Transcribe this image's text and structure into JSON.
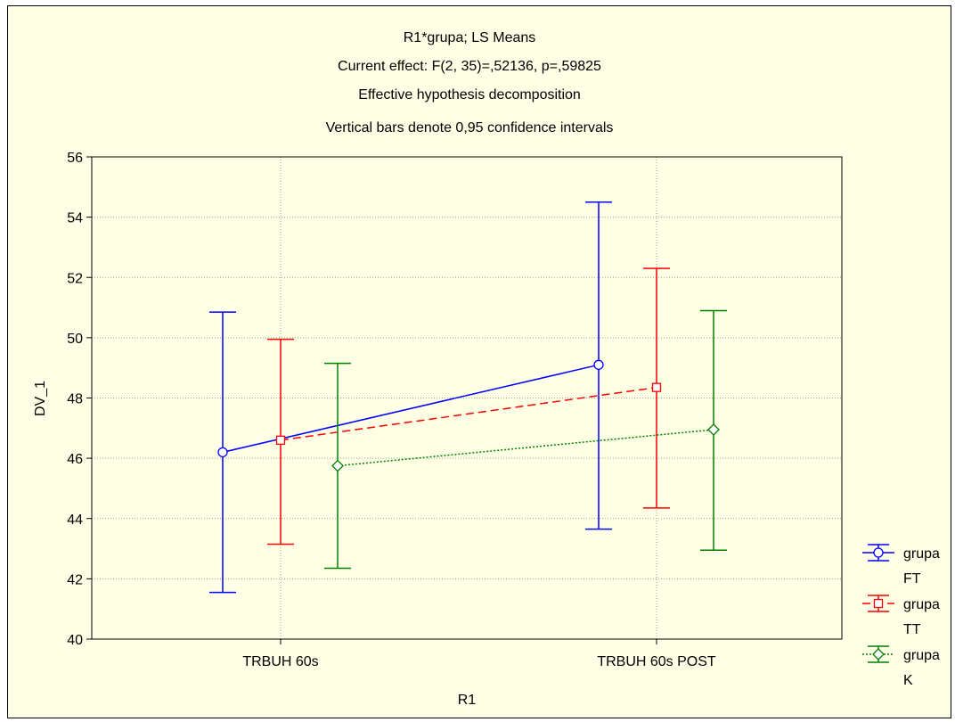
{
  "chart_data": {
    "type": "line",
    "title_lines": [
      "R1*grupa; LS Means",
      "Current effect: F(2, 35)=,52136, p=,59825",
      "Effective hypothesis decomposition",
      "Vertical bars denote 0,95 confidence intervals"
    ],
    "xlabel": "R1",
    "ylabel": "DV_1",
    "categories": [
      "TRBUH 60s",
      "TRBUH 60s POST"
    ],
    "ylim": [
      40,
      56
    ],
    "yticks": [
      "40",
      "42",
      "44",
      "46",
      "48",
      "50",
      "52",
      "54",
      "56"
    ],
    "grid": true,
    "legend_position": "right",
    "series": [
      {
        "legend_lines": [
          "grupa",
          "FT"
        ],
        "color": "#0000ff",
        "marker": "circle",
        "line_style": "solid",
        "values": [
          46.2,
          49.1
        ],
        "ci_low": [
          41.55,
          43.65
        ],
        "ci_high": [
          50.85,
          54.5
        ]
      },
      {
        "legend_lines": [
          "grupa",
          "TT"
        ],
        "color": "#ff0000",
        "marker": "square",
        "line_style": "dashed",
        "values": [
          46.6,
          48.35
        ],
        "ci_low": [
          43.15,
          44.35
        ],
        "ci_high": [
          49.95,
          52.3
        ]
      },
      {
        "legend_lines": [
          "grupa",
          "K"
        ],
        "color": "#008000",
        "marker": "diamond",
        "line_style": "dotted",
        "values": [
          45.75,
          46.95
        ],
        "ci_low": [
          42.35,
          42.95
        ],
        "ci_high": [
          49.15,
          50.9
        ]
      }
    ]
  }
}
